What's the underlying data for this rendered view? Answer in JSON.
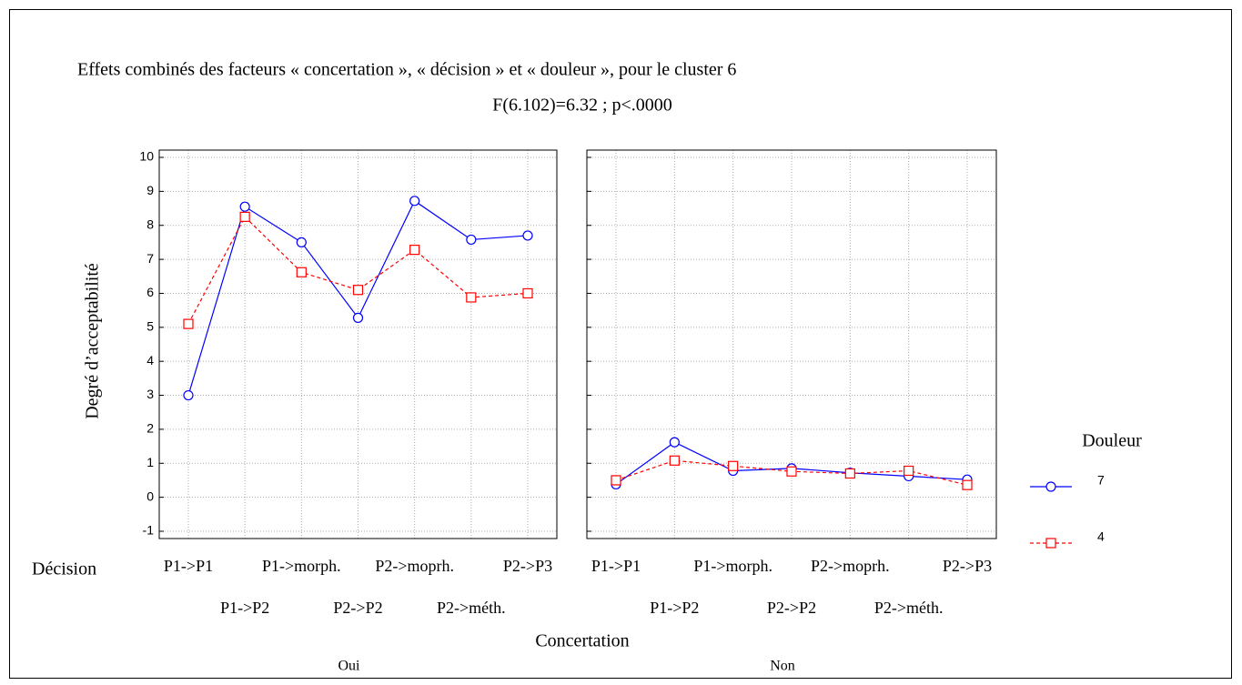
{
  "chart_data": [
    {
      "type": "line",
      "title": "Effets combinés des facteurs « concertation », « décision » et « douleur », pour le cluster 6",
      "subtitle": "F(6.102)=6.32 ; p<.0000",
      "y_label": "Degré d’acceptabilité",
      "x_label": "Concertation",
      "x_row_label": "Décision",
      "legend_title": "Douleur",
      "panel_label": "Oui",
      "categories": [
        "P1->P1",
        "P1->P2",
        "P1->morph.",
        "P2->P2",
        "P2->moprh.",
        "P2->méth.",
        "P2->P3"
      ],
      "series": [
        {
          "name": "7",
          "color": "#0000ff",
          "line_style": "solid",
          "marker": "circle",
          "values": [
            3.0,
            8.55,
            7.5,
            5.28,
            8.72,
            7.58,
            7.7
          ]
        },
        {
          "name": "4",
          "color": "#ff0000",
          "line_style": "dashed",
          "marker": "square",
          "values": [
            5.1,
            8.25,
            6.62,
            6.1,
            7.28,
            5.88,
            6.0
          ]
        }
      ],
      "ylim": [
        -1,
        10
      ],
      "yticks": [
        -1,
        0,
        1,
        2,
        3,
        4,
        5,
        6,
        7,
        8,
        9,
        10
      ],
      "grid": true
    },
    {
      "type": "line",
      "panel_label": "Non",
      "categories": [
        "P1->P1",
        "P1->P2",
        "P1->morph.",
        "P2->P2",
        "P2->moprh.",
        "P2->méth.",
        "P2->P3"
      ],
      "series": [
        {
          "name": "7",
          "color": "#0000ff",
          "line_style": "solid",
          "marker": "circle",
          "values": [
            0.38,
            1.62,
            0.78,
            0.85,
            0.72,
            0.62,
            0.52
          ]
        },
        {
          "name": "4",
          "color": "#ff0000",
          "line_style": "dashed",
          "marker": "square",
          "values": [
            0.5,
            1.08,
            0.92,
            0.76,
            0.7,
            0.78,
            0.36
          ]
        }
      ],
      "ylim": [
        -1,
        10
      ],
      "yticks": [
        -1,
        0,
        1,
        2,
        3,
        4,
        5,
        6,
        7,
        8,
        9,
        10
      ],
      "grid": true
    }
  ]
}
